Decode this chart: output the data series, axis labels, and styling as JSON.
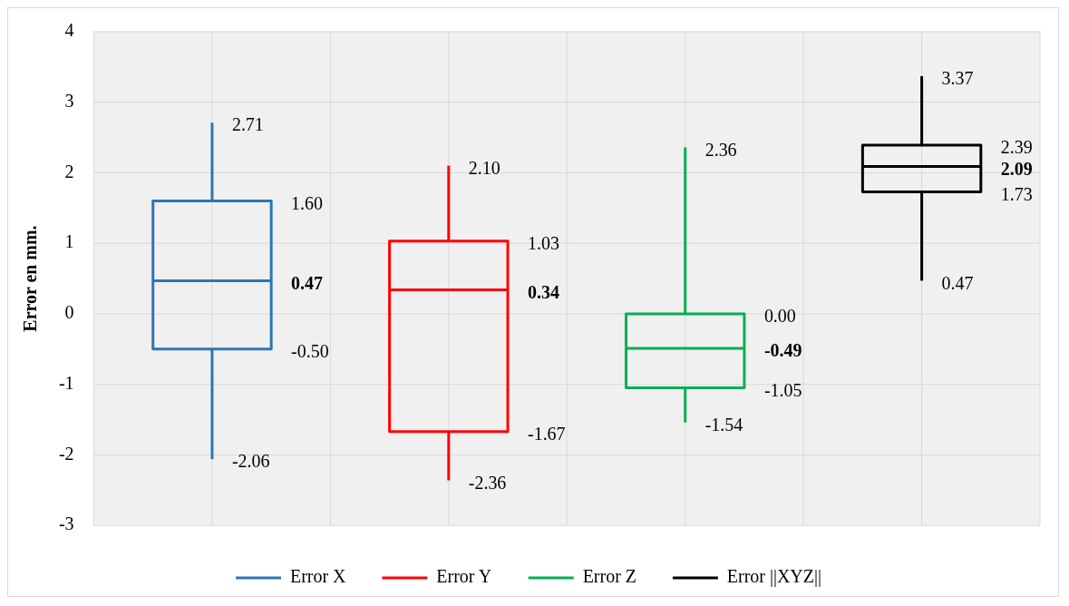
{
  "chart_data": {
    "type": "box",
    "ylabel": "Error en mm.",
    "categories": [
      null,
      null,
      null,
      null
    ],
    "ylim": [
      -3,
      4
    ],
    "yticks": [
      -3,
      -2,
      -1,
      0,
      1,
      2,
      3,
      4
    ],
    "grid": true,
    "legend": "bottom",
    "tick_labels": "y",
    "series": [
      {
        "name": "Error X",
        "color": "#2e75b6",
        "boxes": [
          {
            "low": -2.06,
            "q1": -0.5,
            "median": 0.47,
            "q3": 1.6,
            "high": 2.71
          },
          null,
          null,
          null
        ]
      },
      {
        "name": "Error Y",
        "color": "#ff0000",
        "boxes": [
          null,
          {
            "low": -2.36,
            "q1": -1.67,
            "median": 0.34,
            "q3": 1.03,
            "high": 2.1
          },
          null,
          null
        ]
      },
      {
        "name": "Error Z",
        "color": "#00b050",
        "boxes": [
          null,
          null,
          {
            "low": -1.54,
            "q1": -1.05,
            "median": -0.49,
            "q3": 0.0,
            "high": 2.36
          },
          null
        ]
      },
      {
        "name": "Error ||XYZ||",
        "color": "#000000",
        "boxes": [
          null,
          null,
          null,
          {
            "low": 0.47,
            "q1": 1.73,
            "median": 2.09,
            "q3": 2.39,
            "high": 3.37
          }
        ]
      }
    ],
    "annotations": [
      "2.71",
      "1.60",
      "0.47",
      "-0.50",
      "-2.06",
      "2.10",
      "1.03",
      "0.34",
      "-1.67",
      "-2.36",
      "2.36",
      "0.00",
      "-0.49",
      "-1.05",
      "-1.54",
      "3.37",
      "2.39",
      "2.09",
      "1.73",
      "0.47"
    ]
  }
}
